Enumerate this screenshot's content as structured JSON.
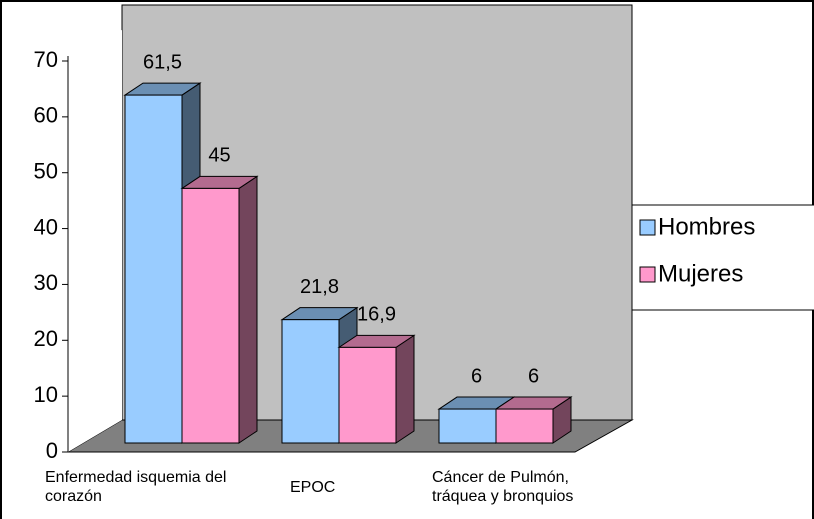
{
  "chart_data": {
    "type": "bar3d",
    "categories": [
      "Enfermedad isquemia del corazón",
      "EPOC",
      "Cáncer de Pulmón, tráquea y bronquios"
    ],
    "series": [
      {
        "name": "Hombres",
        "color": "#99ccff",
        "values": [
          61.5,
          21.8,
          6
        ],
        "value_labels": [
          "61,5",
          "21,8",
          "6"
        ]
      },
      {
        "name": "Mujeres",
        "color": "#ff99cc",
        "values": [
          45,
          16.9,
          6
        ],
        "value_labels": [
          "45",
          "16,9",
          "6"
        ]
      }
    ],
    "ylim": [
      0,
      70
    ],
    "yticks": [
      0,
      10,
      20,
      30,
      40,
      50,
      60,
      70
    ],
    "grid": false,
    "legend": "right"
  }
}
